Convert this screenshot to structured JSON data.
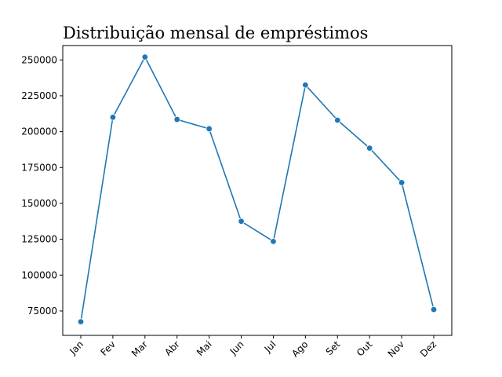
{
  "chart_data": {
    "type": "line",
    "title": "Distribuição mensal de empréstimos",
    "xlabel": "",
    "ylabel": "",
    "categories": [
      "Jan",
      "Fev",
      "Mar",
      "Abr",
      "Mai",
      "Jun",
      "Jul",
      "Ago",
      "Set",
      "Out",
      "Nov",
      "Dez"
    ],
    "series": [
      {
        "values": [
          67500,
          210000,
          252000,
          208500,
          202000,
          137500,
          123500,
          232500,
          208000,
          188500,
          164500,
          76000
        ],
        "color": "#1f77b4",
        "marker": "circle"
      }
    ],
    "ylim": [
      58000,
      260000
    ],
    "yticks": [
      75000,
      100000,
      125000,
      150000,
      175000,
      200000,
      225000,
      250000
    ],
    "ytick_labels": [
      "75000",
      "100000",
      "125000",
      "150000",
      "175000",
      "200000",
      "225000",
      "250000"
    ],
    "x_tick_rotation": 45,
    "grid": false,
    "legend": "none"
  }
}
